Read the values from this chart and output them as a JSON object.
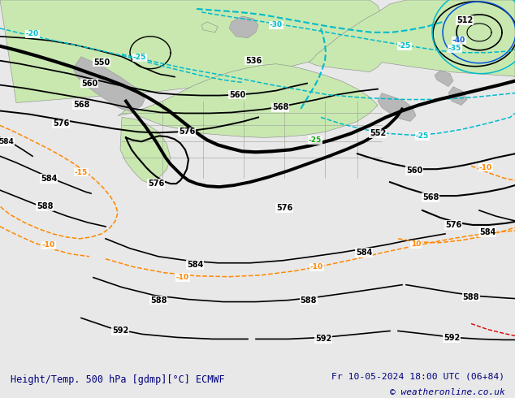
{
  "title_left": "Height/Temp. 500 hPa [gdmp][°C] ECMWF",
  "title_right": "Fr 10-05-2024 18:00 UTC (06+84)",
  "copyright": "© weatheronline.co.uk",
  "bg_color": "#e8e8e8",
  "land_green": "#c8e8b0",
  "land_green2": "#b8d898",
  "ocean_color": "#d8dde8",
  "gray_land": "#aaaaaa",
  "gray_land2": "#b8b8b8",
  "bottom_bar_color": "#c8d0e8",
  "bottom_text_color": "#000080",
  "black": "#000000",
  "cyan": "#00bbcc",
  "cyan2": "#00aadd",
  "blue": "#0055dd",
  "orange": "#ff8800",
  "red": "#dd0000",
  "figsize": [
    6.34,
    4.9
  ],
  "dpi": 100
}
